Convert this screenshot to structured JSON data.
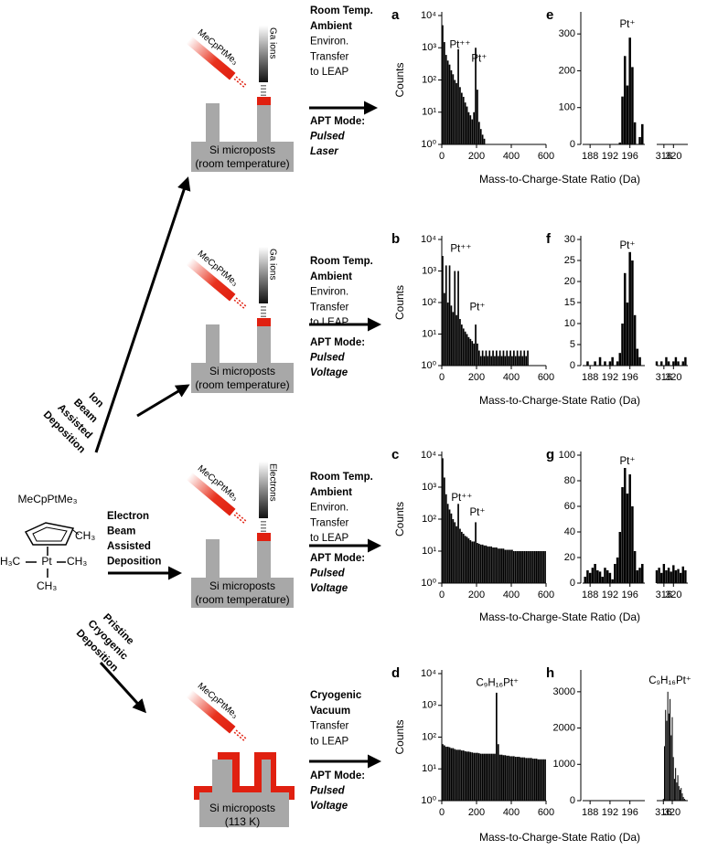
{
  "chart_data": [
    {
      "type": "bar",
      "label": "a",
      "ylabel": "Counts",
      "log": true,
      "color": "#000000",
      "ylim": [
        1,
        10000
      ],
      "yticks": [
        {
          "value": 1,
          "label": "10⁰"
        },
        {
          "value": 10,
          "label": "10¹"
        },
        {
          "value": 100,
          "label": "10²"
        },
        {
          "value": 1000,
          "label": "10³"
        },
        {
          "value": 10000,
          "label": "10⁴"
        }
      ],
      "xlim": [
        0,
        600
      ],
      "xticks": [
        0,
        200,
        400,
        600
      ],
      "x": [
        5,
        15,
        25,
        35,
        45,
        55,
        65,
        75,
        85,
        95,
        105,
        115,
        125,
        135,
        145,
        155,
        165,
        175,
        185,
        195,
        205,
        215,
        225,
        235,
        245
      ],
      "values": [
        5000,
        1500,
        600,
        400,
        300,
        200,
        150,
        100,
        80,
        900,
        60,
        40,
        30,
        20,
        15,
        10,
        8,
        6,
        10,
        1000,
        50,
        5,
        3,
        2,
        1.5
      ],
      "annotations": [
        {
          "text": "Pt⁺⁺",
          "x": 105,
          "y": 1200
        },
        {
          "text": "Pt⁺",
          "x": 215,
          "y": 450
        }
      ]
    },
    {
      "type": "bar",
      "label": "b",
      "ylabel": "Counts",
      "log": true,
      "color": "#000000",
      "ylim": [
        1,
        10000
      ],
      "yticks": [
        {
          "value": 1,
          "label": "10⁰"
        },
        {
          "value": 10,
          "label": "10¹"
        },
        {
          "value": 100,
          "label": "10²"
        },
        {
          "value": 1000,
          "label": "10³"
        },
        {
          "value": 10000,
          "label": "10⁴"
        }
      ],
      "xlim": [
        0,
        600
      ],
      "xticks": [
        0,
        200,
        400,
        600
      ],
      "x": [
        5,
        15,
        25,
        35,
        45,
        55,
        65,
        75,
        85,
        95,
        105,
        115,
        125,
        135,
        145,
        155,
        165,
        175,
        185,
        195,
        205,
        215,
        225,
        235,
        245,
        255,
        265,
        275,
        285,
        295,
        305,
        315,
        325,
        335,
        345,
        355,
        365,
        375,
        385,
        395,
        405,
        415,
        425,
        435,
        445,
        455,
        465,
        475,
        485,
        495
      ],
      "values": [
        3000,
        200,
        1500,
        100,
        1500,
        80,
        50,
        1000,
        40,
        1000,
        30,
        20,
        15,
        12,
        10,
        8,
        7,
        6,
        5,
        20,
        5,
        3,
        2,
        3,
        2,
        3,
        2,
        3,
        2,
        3,
        2,
        3,
        2,
        3,
        2,
        3,
        2,
        3,
        2,
        3,
        2,
        3,
        2,
        3,
        2,
        3,
        2,
        3,
        2,
        3
      ],
      "annotations": [
        {
          "text": "Pt⁺⁺",
          "x": 110,
          "y": 5000
        },
        {
          "text": "Pt⁺",
          "x": 205,
          "y": 70
        }
      ]
    },
    {
      "type": "bar",
      "label": "c",
      "ylabel": "Counts",
      "log": true,
      "color": "#000000",
      "ylim": [
        1,
        10000
      ],
      "yticks": [
        {
          "value": 1,
          "label": "10⁰"
        },
        {
          "value": 10,
          "label": "10¹"
        },
        {
          "value": 100,
          "label": "10²"
        },
        {
          "value": 1000,
          "label": "10³"
        },
        {
          "value": 10000,
          "label": "10⁴"
        }
      ],
      "xlim": [
        0,
        600
      ],
      "xticks": [
        0,
        200,
        400,
        600
      ],
      "x": [
        5,
        15,
        25,
        35,
        45,
        55,
        65,
        75,
        85,
        95,
        105,
        115,
        125,
        135,
        145,
        155,
        165,
        175,
        185,
        195,
        205,
        215,
        225,
        235,
        245,
        255,
        265,
        275,
        285,
        295,
        305,
        315,
        325,
        335,
        345,
        355,
        365,
        375,
        385,
        395,
        405,
        415,
        425,
        435,
        445,
        455,
        465,
        475,
        485,
        495,
        505,
        515,
        525,
        535,
        545,
        555,
        565,
        575,
        585,
        595
      ],
      "values": [
        8000,
        2000,
        600,
        300,
        200,
        150,
        100,
        80,
        60,
        300,
        50,
        40,
        35,
        30,
        28,
        25,
        22,
        20,
        20,
        80,
        18,
        17,
        16,
        16,
        15,
        15,
        14,
        14,
        14,
        13,
        13,
        13,
        12,
        12,
        12,
        12,
        11,
        11,
        11,
        11,
        11,
        10,
        10,
        10,
        10,
        10,
        10,
        10,
        10,
        10,
        10,
        10,
        10,
        10,
        10,
        10,
        10,
        10,
        10,
        10
      ],
      "annotations": [
        {
          "text": "Pt⁺⁺",
          "x": 115,
          "y": 450
        },
        {
          "text": "Pt⁺",
          "x": 205,
          "y": 160
        }
      ]
    },
    {
      "type": "bar",
      "label": "d",
      "ylabel": "Counts",
      "log": true,
      "color": "#000000",
      "ylim": [
        1,
        10000
      ],
      "yticks": [
        {
          "value": 1,
          "label": "10⁰"
        },
        {
          "value": 10,
          "label": "10¹"
        },
        {
          "value": 100,
          "label": "10²"
        },
        {
          "value": 1000,
          "label": "10³"
        },
        {
          "value": 10000,
          "label": "10⁴"
        }
      ],
      "xlim": [
        0,
        600
      ],
      "xticks": [
        0,
        200,
        400,
        600
      ],
      "x": [
        5,
        15,
        25,
        35,
        45,
        55,
        65,
        75,
        85,
        95,
        105,
        115,
        125,
        135,
        145,
        155,
        165,
        175,
        185,
        195,
        205,
        215,
        225,
        235,
        245,
        255,
        265,
        275,
        285,
        295,
        305,
        315,
        325,
        335,
        345,
        355,
        365,
        375,
        385,
        395,
        405,
        415,
        425,
        435,
        445,
        455,
        465,
        475,
        485,
        495,
        505,
        515,
        525,
        535,
        545,
        555,
        565,
        575,
        585,
        595
      ],
      "values": [
        60,
        55,
        50,
        50,
        48,
        45,
        45,
        42,
        40,
        40,
        40,
        38,
        38,
        36,
        35,
        35,
        34,
        33,
        32,
        32,
        32,
        31,
        30,
        30,
        30,
        30,
        30,
        30,
        30,
        30,
        30,
        2500,
        60,
        28,
        28,
        27,
        27,
        26,
        26,
        25,
        25,
        25,
        24,
        24,
        24,
        23,
        23,
        23,
        22,
        22,
        22,
        22,
        21,
        21,
        21,
        20,
        20,
        20,
        20,
        20
      ],
      "annotations": [
        {
          "text": "C₉H₁₆Pt⁺",
          "x": 320,
          "y": 5000
        }
      ]
    },
    {
      "type": "bar",
      "label": "e",
      "log": false,
      "color": "#000000",
      "ylim": [
        0,
        350
      ],
      "yticks": [
        0,
        100,
        200,
        300
      ],
      "segments": [
        {
          "xlim": [
            186.5,
            199
          ],
          "xticks": [
            188,
            192,
            196
          ],
          "x": [
            187,
            187.5,
            188,
            188.5,
            189,
            189.5,
            190,
            190.5,
            191,
            191.5,
            192,
            192.5,
            193,
            193.5,
            194,
            194.5,
            195,
            195.5,
            196,
            196.5,
            197,
            197.5,
            198,
            198.5
          ],
          "values": [
            0,
            0,
            0,
            0,
            0,
            0,
            0,
            0,
            0,
            0,
            0,
            0,
            0,
            0,
            5,
            130,
            240,
            160,
            290,
            210,
            60,
            0,
            20,
            55
          ]
        },
        {
          "xlim": [
            313,
            326
          ],
          "xticks": [
            316,
            320
          ]
        }
      ],
      "annotations": [
        {
          "text": "Pt⁺",
          "x": 195.5,
          "y": 325
        }
      ]
    },
    {
      "type": "bar",
      "label": "f",
      "log": false,
      "color": "#000000",
      "ylim": [
        0,
        30
      ],
      "yticks": [
        0,
        5,
        10,
        15,
        20,
        25,
        30
      ],
      "segments": [
        {
          "xlim": [
            186.5,
            199
          ],
          "xticks": [
            188,
            192,
            196
          ],
          "x": [
            187,
            187.5,
            188,
            188.5,
            189,
            189.5,
            190,
            190.5,
            191,
            191.5,
            192,
            192.5,
            193,
            193.5,
            194,
            194.5,
            195,
            195.5,
            196,
            196.5,
            197,
            197.5,
            198,
            198.5
          ],
          "values": [
            0,
            1,
            0,
            0,
            1,
            0,
            2,
            0,
            1,
            0,
            1,
            2,
            0,
            1,
            3,
            10,
            22,
            15,
            27,
            25,
            12,
            4,
            2,
            0
          ]
        },
        {
          "xlim": [
            313,
            326
          ],
          "xticks": [
            316,
            320
          ],
          "x": [
            313,
            314,
            315,
            316,
            317,
            318,
            319,
            320,
            321,
            322,
            323,
            324,
            325
          ],
          "values": [
            1,
            0,
            1,
            0,
            2,
            1,
            0,
            1,
            2,
            1,
            0,
            1,
            2
          ]
        }
      ],
      "annotations": [
        {
          "text": "Pt⁺",
          "x": 195.5,
          "y": 28.5
        }
      ]
    },
    {
      "type": "bar",
      "label": "g",
      "log": false,
      "color": "#000000",
      "ylim": [
        0,
        100
      ],
      "yticks": [
        0,
        20,
        40,
        60,
        80,
        100
      ],
      "segments": [
        {
          "xlim": [
            186.5,
            199
          ],
          "xticks": [
            188,
            192,
            196
          ],
          "x": [
            187,
            187.5,
            188,
            188.5,
            189,
            189.5,
            190,
            190.5,
            191,
            191.5,
            192,
            192.5,
            193,
            193.5,
            194,
            194.5,
            195,
            195.5,
            196,
            196.5,
            197,
            197.5,
            198,
            198.5
          ],
          "values": [
            5,
            10,
            8,
            12,
            15,
            10,
            9,
            5,
            12,
            10,
            8,
            3,
            15,
            20,
            40,
            75,
            90,
            70,
            85,
            60,
            25,
            10,
            12,
            15
          ]
        },
        {
          "xlim": [
            313,
            326
          ],
          "xticks": [
            316,
            320
          ],
          "x": [
            313,
            314,
            315,
            316,
            317,
            318,
            319,
            320,
            321,
            322,
            323,
            324,
            325
          ],
          "values": [
            10,
            12,
            8,
            15,
            10,
            12,
            9,
            14,
            10,
            11,
            8,
            13,
            10
          ]
        }
      ],
      "annotations": [
        {
          "text": "Pt⁺",
          "x": 195.5,
          "y": 95
        }
      ]
    },
    {
      "type": "bar",
      "label": "h",
      "log": false,
      "color": "#000000",
      "ylim": [
        0,
        3500
      ],
      "yticks": [
        0,
        1000,
        2000,
        3000
      ],
      "segments": [
        {
          "xlim": [
            186.5,
            199
          ],
          "xticks": [
            188,
            192,
            196
          ]
        },
        {
          "xlim": [
            313,
            327
          ],
          "xticks": [
            316,
            320
          ],
          "x": [
            313,
            313.5,
            314,
            314.5,
            315,
            315.5,
            316,
            316.5,
            317,
            317.5,
            318,
            318.5,
            319,
            319.5,
            320,
            320.5,
            321,
            321.5,
            322,
            322.5,
            323,
            323.5,
            324,
            324.5,
            325,
            325.5,
            326
          ],
          "values": [
            0,
            0,
            0,
            0,
            0,
            0,
            50,
            1500,
            2500,
            2200,
            3000,
            2400,
            2800,
            1800,
            2300,
            1200,
            600,
            900,
            500,
            700,
            400,
            300,
            350,
            200,
            100,
            50,
            20
          ]
        }
      ],
      "annotations": [
        {
          "text": "C₉H₁₆Pt⁺",
          "x": 319,
          "y": 3300
        }
      ]
    }
  ],
  "rows": [
    {
      "xlabel": "Mass-to-Charge-State Ratio (Da)",
      "bold_lines": [
        "Room Temp.",
        "Ambient"
      ],
      "bold_color": "#000000",
      "plain_lines": [
        "Environ.",
        "Transfer",
        "to LEAP"
      ],
      "mode_heading": "APT Mode:",
      "mode_lines": [
        "Pulsed",
        "Laser"
      ],
      "mode_color": "#7030a0",
      "precursor": "MeCpPtMe₃",
      "beam": "Ga ions",
      "substrate": [
        "Si microposts",
        "(room temperature)"
      ]
    },
    {
      "xlabel": "Mass-to-Charge-State Ratio (Da)",
      "bold_lines": [
        "Room Temp.",
        "Ambient"
      ],
      "bold_color": "#000000",
      "plain_lines": [
        "Environ.",
        "Transfer",
        "to LEAP"
      ],
      "mode_heading": "APT Mode:",
      "mode_lines": [
        "Pulsed",
        "Voltage"
      ],
      "mode_color": "#e36c0a",
      "precursor": "MeCpPtMe₃",
      "beam": "Ga ions",
      "substrate": [
        "Si microposts",
        "(room temperature)"
      ]
    },
    {
      "xlabel": "Mass-to-Charge-State Ratio (Da)",
      "bold_lines": [
        "Room Temp.",
        "Ambient"
      ],
      "bold_color": "#000000",
      "plain_lines": [
        "Environ.",
        "Transfer",
        "to LEAP"
      ],
      "mode_heading": "APT Mode:",
      "mode_lines": [
        "Pulsed",
        "Voltage"
      ],
      "mode_color": "#e36c0a",
      "precursor": "MeCpPtMe₃",
      "beam": "Electrons",
      "substrate": [
        "Si microposts",
        "(room temperature)"
      ]
    },
    {
      "xlabel": "Mass-to-Charge-State Ratio (Da)",
      "bold_lines": [
        "Cryogenic",
        "Vacuum"
      ],
      "bold_color": "#3f4a9e",
      "plain_lines": [
        "Transfer",
        "to LEAP"
      ],
      "mode_heading": "APT Mode:",
      "mode_lines": [
        "Pulsed",
        "Voltage"
      ],
      "mode_color": "#e36c0a",
      "precursor": "MeCpPtMe₃",
      "substrate": [
        "Si microposts",
        "(113 K)"
      ]
    }
  ],
  "depositions": [
    [
      "Ion",
      "Beam",
      "Assisted",
      "Deposition"
    ],
    [
      "Electron",
      "Beam",
      "Assisted",
      "Deposition"
    ],
    [
      "Pristine",
      "Cryogenic",
      "Deposition"
    ]
  ],
  "molecule": {
    "name": "MeCpPtMe₃",
    "ring_methyl": "CH₃",
    "metal": "Pt",
    "methyls": [
      "H₃C",
      "CH₃",
      "CH₃"
    ]
  }
}
